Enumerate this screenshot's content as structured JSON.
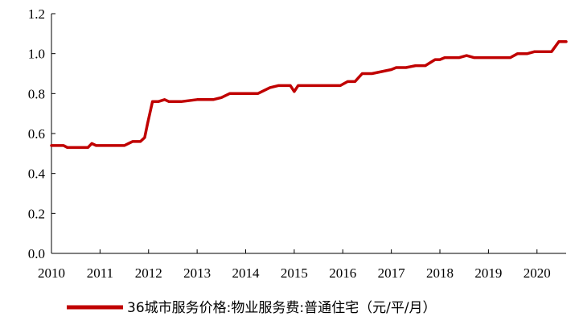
{
  "chart_data": {
    "type": "line",
    "title": "",
    "xlabel": "",
    "ylabel": "",
    "xlim": [
      2010.0,
      2020.6
    ],
    "ylim": [
      0.0,
      1.2
    ],
    "y_ticks": [
      "0.0",
      "0.2",
      "0.4",
      "0.6",
      "0.8",
      "1.0",
      "1.2"
    ],
    "x_ticks": [
      "2010",
      "2011",
      "2012",
      "2013",
      "2014",
      "2015",
      "2016",
      "2017",
      "2018",
      "2019",
      "2020"
    ],
    "grid": false,
    "legend_position": "bottom",
    "series": [
      {
        "name": "36城市服务价格:物业服务费:普通住宅（元/平/月）",
        "color": "#c00000",
        "points": [
          [
            2010.0,
            0.54
          ],
          [
            2010.25,
            0.54
          ],
          [
            2010.33,
            0.53
          ],
          [
            2010.75,
            0.53
          ],
          [
            2010.83,
            0.55
          ],
          [
            2010.92,
            0.54
          ],
          [
            2011.5,
            0.54
          ],
          [
            2011.67,
            0.56
          ],
          [
            2011.83,
            0.56
          ],
          [
            2011.92,
            0.58
          ],
          [
            2011.98,
            0.65
          ],
          [
            2012.08,
            0.76
          ],
          [
            2012.2,
            0.76
          ],
          [
            2012.33,
            0.77
          ],
          [
            2012.42,
            0.76
          ],
          [
            2012.67,
            0.76
          ],
          [
            2013.0,
            0.77
          ],
          [
            2013.33,
            0.77
          ],
          [
            2013.5,
            0.78
          ],
          [
            2013.67,
            0.8
          ],
          [
            2013.83,
            0.8
          ],
          [
            2014.25,
            0.8
          ],
          [
            2014.5,
            0.83
          ],
          [
            2014.67,
            0.84
          ],
          [
            2014.92,
            0.84
          ],
          [
            2015.0,
            0.81
          ],
          [
            2015.08,
            0.84
          ],
          [
            2015.75,
            0.84
          ],
          [
            2015.95,
            0.84
          ],
          [
            2016.1,
            0.86
          ],
          [
            2016.25,
            0.86
          ],
          [
            2016.4,
            0.9
          ],
          [
            2016.6,
            0.9
          ],
          [
            2016.8,
            0.91
          ],
          [
            2017.0,
            0.92
          ],
          [
            2017.1,
            0.93
          ],
          [
            2017.3,
            0.93
          ],
          [
            2017.5,
            0.94
          ],
          [
            2017.7,
            0.94
          ],
          [
            2017.9,
            0.97
          ],
          [
            2018.0,
            0.97
          ],
          [
            2018.1,
            0.98
          ],
          [
            2018.4,
            0.98
          ],
          [
            2018.55,
            0.99
          ],
          [
            2018.7,
            0.98
          ],
          [
            2019.45,
            0.98
          ],
          [
            2019.6,
            1.0
          ],
          [
            2019.8,
            1.0
          ],
          [
            2019.95,
            1.01
          ],
          [
            2020.3,
            1.01
          ],
          [
            2020.45,
            1.06
          ],
          [
            2020.6,
            1.06
          ]
        ]
      }
    ]
  }
}
